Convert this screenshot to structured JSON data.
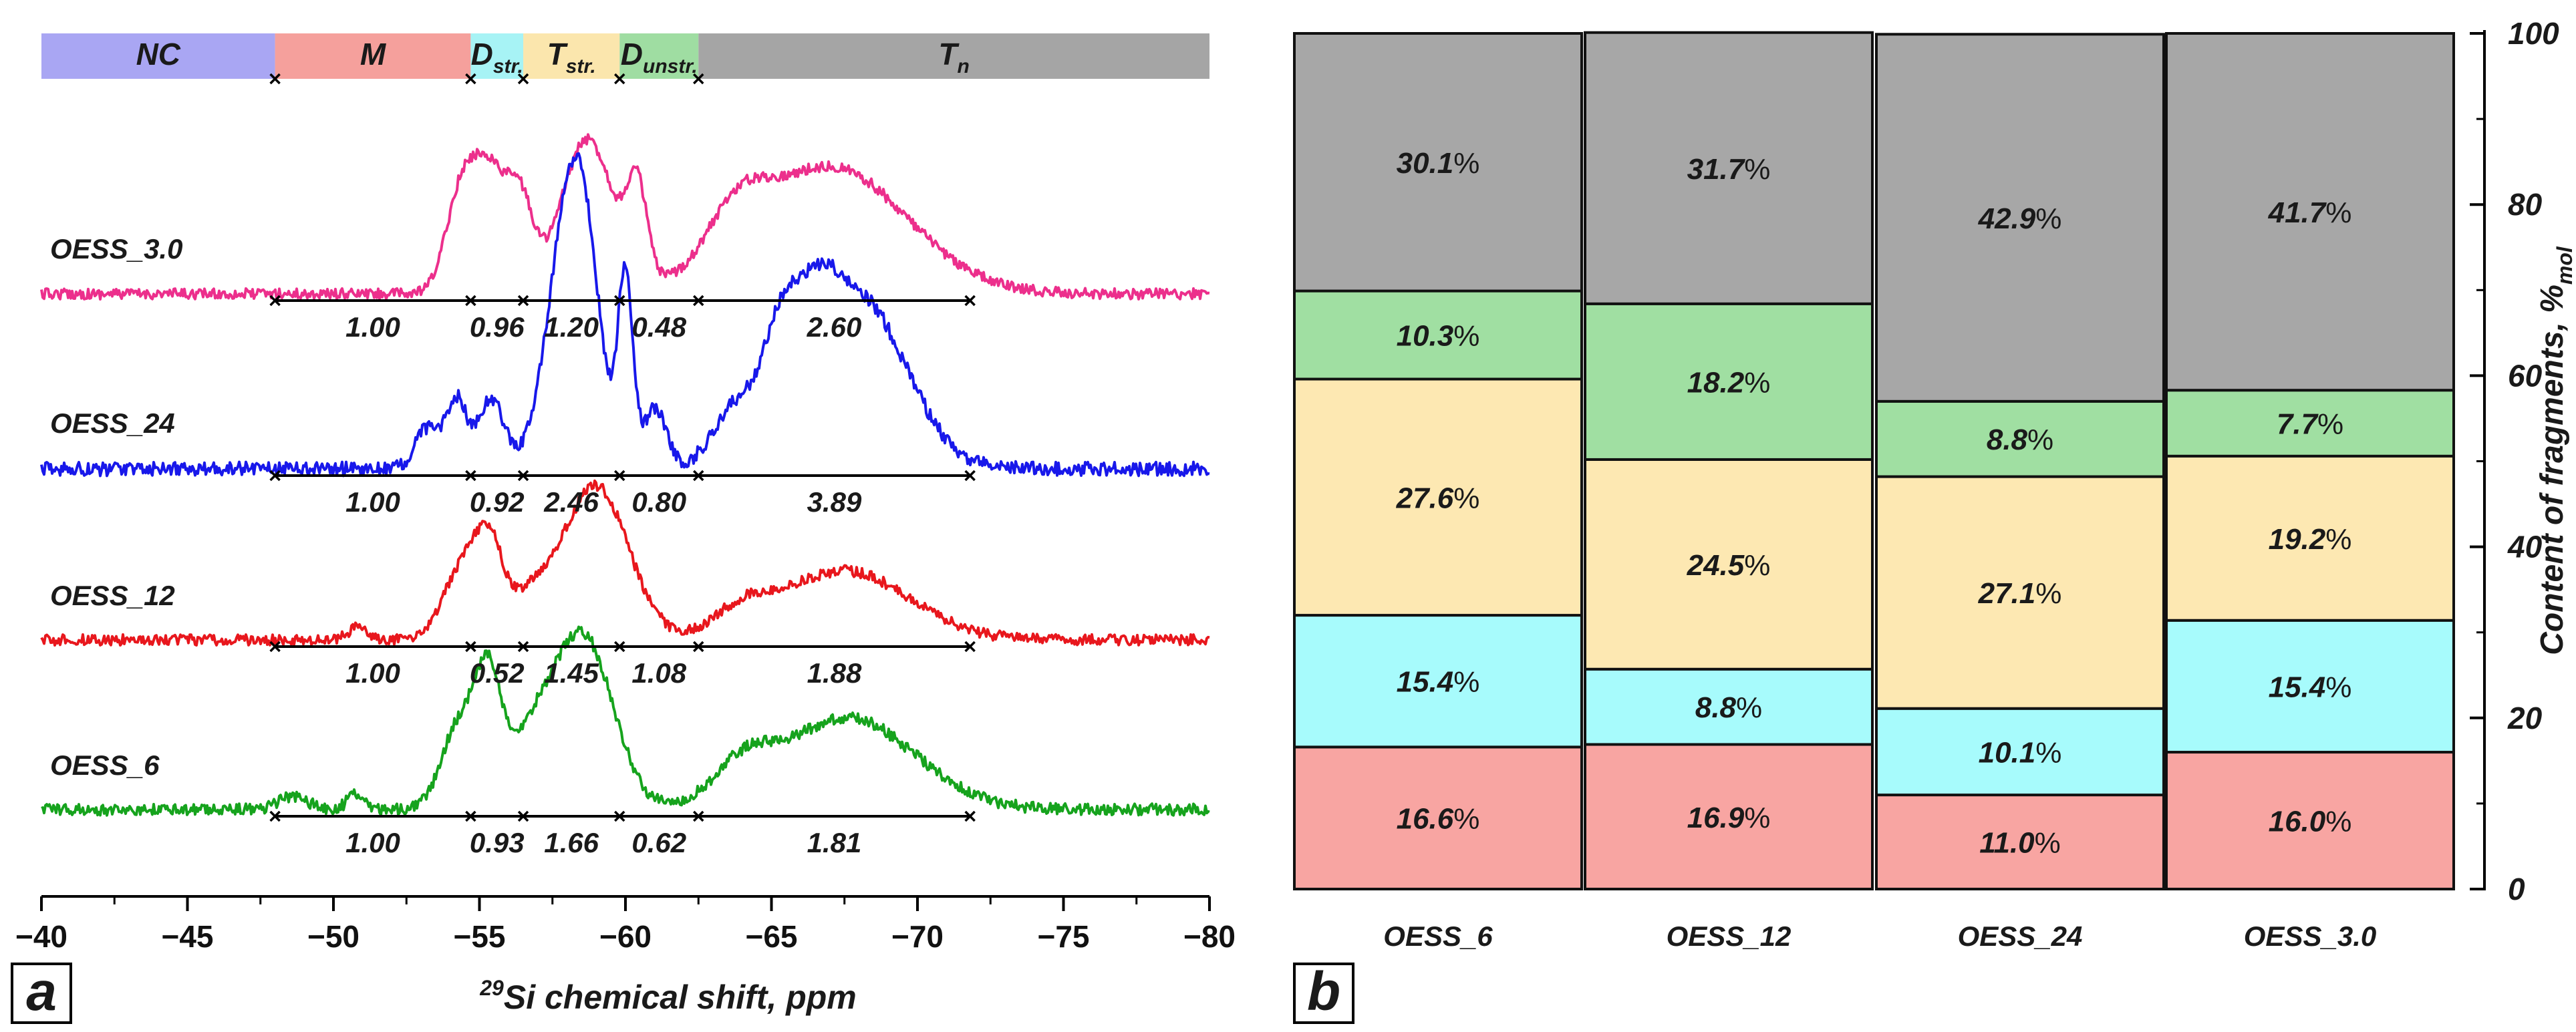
{
  "panel_a": {
    "label": "a",
    "sup": "29",
    "xlabel": "Si chemical shift, ppm",
    "regions": [
      {
        "name": "NC",
        "sub": "",
        "from": -40,
        "to": -48,
        "color": "#a9a6f3"
      },
      {
        "name": "M",
        "sub": "",
        "from": -48,
        "to": -54.7,
        "color": "#f5a09c"
      },
      {
        "name": "D",
        "sub": "str.",
        "from": -54.7,
        "to": -56.5,
        "color": "#a7f3f5"
      },
      {
        "name": "T",
        "sub": "str.",
        "from": -56.5,
        "to": -59.8,
        "color": "#fbe6ad"
      },
      {
        "name": "D",
        "sub": "unstr.",
        "from": -59.8,
        "to": -62.5,
        "color": "#9fdda2"
      },
      {
        "name": "T",
        "sub": "n",
        "from": -62.5,
        "to": -80,
        "color": "#a5a5a5"
      }
    ]
  },
  "panel_b": {
    "label": "b",
    "ylabel": "Content of fragments, %",
    "ylabel_sub": "mol",
    "ytick_labels": [
      "0",
      "20",
      "40",
      "60",
      "80",
      "100"
    ],
    "segment_colors": [
      "#f8a5a2",
      "#a7fbfc",
      "#fde8b2",
      "#a0dfa2",
      "#a7a7a7"
    ]
  },
  "chart_data": [
    {
      "type": "line",
      "title": "",
      "xlabel": "29Si chemical shift, ppm",
      "ylabel": "",
      "xlim": [
        -40,
        -80
      ],
      "x_ticks": [
        -40,
        -45,
        -50,
        -55,
        -60,
        -65,
        -70,
        -75,
        -80
      ],
      "x_tick_labels": [
        "−40",
        "−45",
        "−50",
        "−55",
        "−60",
        "−65",
        "−70",
        "−75",
        "−80"
      ],
      "integration_bounds": [
        -48,
        -54.7,
        -56.5,
        -59.8,
        -62.5,
        -71.8
      ],
      "series": [
        {
          "name": "OESS_3.0",
          "color": "#ec2f8c",
          "peaks": [
            [
              -54.3,
              0.55,
              0.5
            ],
            [
              -55.3,
              0.8,
              0.6
            ],
            [
              -56.4,
              0.55,
              0.45
            ],
            [
              -58.7,
              1.0,
              0.9
            ],
            [
              -60.4,
              0.6,
              0.35
            ],
            [
              -67.0,
              0.83,
              2.6
            ],
            [
              -63.8,
              0.3,
              1.0
            ]
          ],
          "integrals": [
            "1.00",
            "0.96",
            "1.20",
            "0.48",
            "2.60"
          ]
        },
        {
          "name": "OESS_24",
          "color": "#1818ea",
          "peaks": [
            [
              -53.2,
              0.2,
              0.4
            ],
            [
              -54.2,
              0.35,
              0.35
            ],
            [
              -55.4,
              0.35,
              0.45
            ],
            [
              -57.9,
              0.95,
              0.7
            ],
            [
              -58.6,
              0.85,
              0.6
            ],
            [
              -60.0,
              0.95,
              0.25
            ],
            [
              -61.0,
              0.3,
              0.4
            ],
            [
              -63.8,
              0.3,
              0.8
            ],
            [
              -65.3,
              0.5,
              0.6
            ],
            [
              -66.5,
              0.4,
              0.7
            ],
            [
              -68.0,
              0.85,
              1.6
            ]
          ],
          "integrals": [
            "1.00",
            "0.92",
            "2.46",
            "0.80",
            "3.89"
          ]
        },
        {
          "name": "OESS_12",
          "color": "#e8171d",
          "peaks": [
            [
              -50.8,
              0.08,
              0.3
            ],
            [
              -54.3,
              0.42,
              0.6
            ],
            [
              -55.3,
              0.6,
              0.5
            ],
            [
              -56.8,
              0.25,
              0.8
            ],
            [
              -59.0,
              1.0,
              1.1
            ],
            [
              -64.0,
              0.15,
              1.0
            ],
            [
              -67.5,
              0.45,
              2.2
            ]
          ],
          "integrals": [
            "1.00",
            "0.52",
            "1.45",
            "1.08",
            "1.88"
          ]
        },
        {
          "name": "OESS_6",
          "color": "#16a31d",
          "peaks": [
            [
              -48.6,
              0.08,
              0.5
            ],
            [
              -50.8,
              0.1,
              0.3
            ],
            [
              -54.3,
              0.5,
              0.6
            ],
            [
              -55.3,
              0.7,
              0.45
            ],
            [
              -56.8,
              0.4,
              0.9
            ],
            [
              -58.6,
              1.0,
              1.0
            ],
            [
              -64.0,
              0.2,
              1.0
            ],
            [
              -67.6,
              0.55,
              2.3
            ]
          ],
          "integrals": [
            "1.00",
            "0.93",
            "1.66",
            "0.62",
            "1.81"
          ]
        }
      ]
    },
    {
      "type": "bar",
      "stacked": true,
      "title": "",
      "xlabel": "",
      "ylabel": "Content of fragments, %mol",
      "ylim": [
        0,
        100
      ],
      "y_ticks": [
        0,
        20,
        40,
        60,
        80,
        100
      ],
      "categories": [
        "OESS_6",
        "OESS_12",
        "OESS_24",
        "OESS_3.0"
      ],
      "series": [
        {
          "name": "M",
          "values": [
            16.6,
            16.9,
            11.0,
            16.0
          ],
          "labels": [
            "16.6",
            "16.9",
            "11.0",
            "16.0"
          ]
        },
        {
          "name": "D str.",
          "values": [
            15.4,
            8.8,
            10.1,
            15.4
          ],
          "labels": [
            "15.4",
            "8.8",
            "10.1",
            "15.4"
          ]
        },
        {
          "name": "T str.",
          "values": [
            27.6,
            24.5,
            27.1,
            19.2
          ],
          "labels": [
            "27.6",
            "24.5",
            "27.1",
            "19.2"
          ]
        },
        {
          "name": "D unstr.",
          "values": [
            10.3,
            18.2,
            8.8,
            7.7
          ],
          "labels": [
            "10.3",
            "18.2",
            "8.8",
            "7.7"
          ]
        },
        {
          "name": "T n",
          "values": [
            30.1,
            31.7,
            42.9,
            41.7
          ],
          "labels": [
            "30.1",
            "31.7",
            "42.9",
            "41.7"
          ]
        }
      ],
      "value_suffix": "%"
    }
  ]
}
